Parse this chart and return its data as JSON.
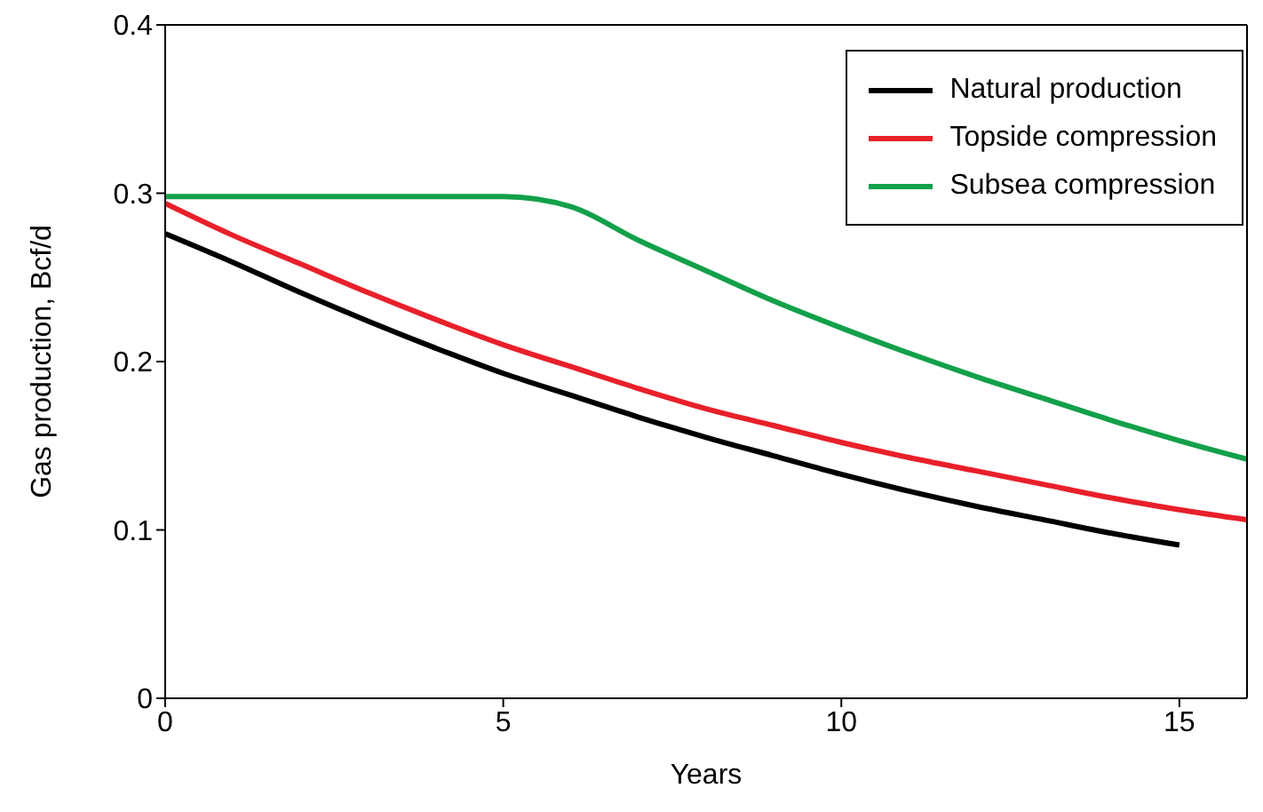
{
  "chart_data": {
    "type": "line",
    "xlabel": "Years",
    "ylabel": "Gas production, Bcf/d",
    "xlim": [
      0,
      16
    ],
    "xticks": [
      0,
      5,
      10,
      15
    ],
    "ylim": [
      0,
      0.4
    ],
    "yticks": [
      0,
      0.1,
      0.2,
      0.3,
      0.4
    ],
    "legend": "top right",
    "marker": "none",
    "line_style": "solid",
    "series": [
      {
        "name": "Natural production",
        "color": "#000000",
        "x": [
          0,
          1,
          2,
          3,
          4,
          5,
          6,
          7,
          8,
          9,
          10,
          11,
          12,
          13,
          14,
          15
        ],
        "values": [
          0.276,
          0.259,
          0.241,
          0.224,
          0.208,
          0.193,
          0.18,
          0.167,
          0.155,
          0.144,
          0.133,
          0.123,
          0.114,
          0.106,
          0.098,
          0.091
        ]
      },
      {
        "name": "Topside compression",
        "color": "#e8202a",
        "x": [
          0,
          1,
          2,
          3,
          4,
          5,
          6,
          7,
          8,
          9,
          10,
          11,
          12,
          13,
          14,
          15,
          16
        ],
        "values": [
          0.294,
          0.275,
          0.258,
          0.241,
          0.225,
          0.21,
          0.197,
          0.184,
          0.172,
          0.162,
          0.152,
          0.143,
          0.135,
          0.127,
          0.119,
          0.112,
          0.106
        ]
      },
      {
        "name": "Subsea compression",
        "color": "#13a04a",
        "x": [
          0,
          5,
          6,
          7,
          8,
          9,
          10,
          11,
          12,
          13,
          14,
          15,
          16
        ],
        "values": [
          0.298,
          0.298,
          0.292,
          0.272,
          0.254,
          0.236,
          0.22,
          0.205,
          0.191,
          0.178,
          0.165,
          0.153,
          0.142
        ]
      }
    ]
  }
}
